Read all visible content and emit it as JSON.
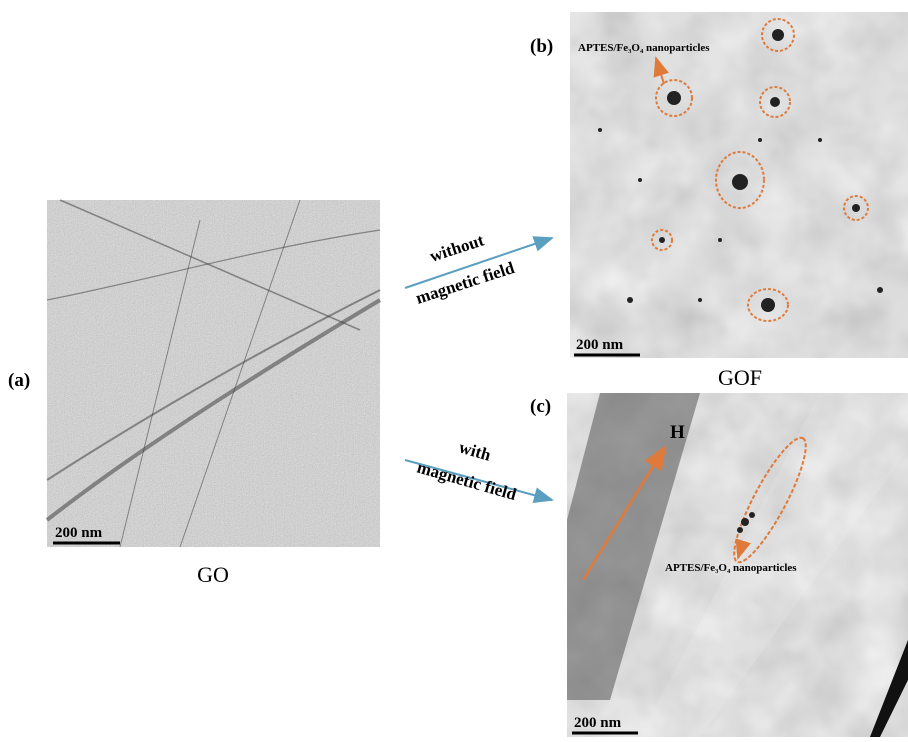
{
  "panels": [
    {
      "label": "(a)",
      "caption": "GO",
      "scale_bar": "200 nm"
    },
    {
      "label": "(b)",
      "caption": "GOF",
      "scale_bar": "200 nm",
      "annotation": "APTES/Fe₃O₄ nanoparticles"
    },
    {
      "label": "(c)",
      "scale_bar": "200 nm",
      "annotation": "APTES/Fe₃O₄ nanoparticles",
      "field_label": "H"
    }
  ],
  "arrows": [
    {
      "lines": [
        "without",
        "magnetic field"
      ]
    },
    {
      "lines": [
        "with",
        "magnetic field"
      ]
    }
  ]
}
